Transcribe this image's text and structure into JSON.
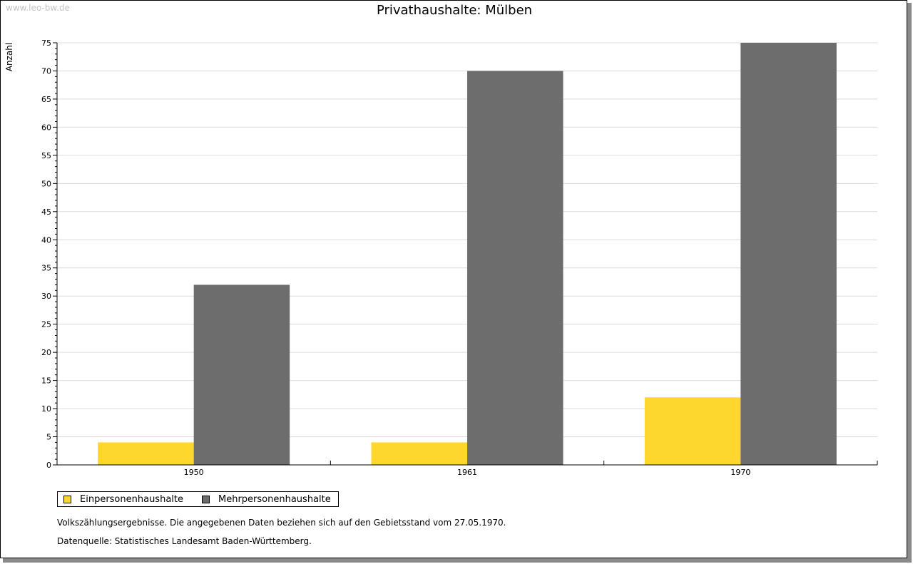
{
  "watermark": "www.leo-bw.de",
  "notes": {
    "census": "Volkszählungsergebnisse. Die angegebenen Daten beziehen sich auf den Gebietsstand vom 27.05.1970.",
    "source": "Datenquelle: Statistisches Landesamt Baden-Württemberg."
  },
  "chart_data": {
    "type": "bar",
    "title": "Privathaushalte: Mülben",
    "ylabel": "Anzahl",
    "xlabel": "",
    "categories": [
      "1950",
      "1961",
      "1970"
    ],
    "series": [
      {
        "name": "Einpersonenhaushalte",
        "color": "#fdd72e",
        "values": [
          4,
          4,
          12
        ]
      },
      {
        "name": "Mehrpersonenhaushalte",
        "color": "#6d6d6d",
        "values": [
          32,
          70,
          75
        ]
      }
    ],
    "ylim": [
      0,
      75
    ],
    "ytick_step": 5,
    "grid": true,
    "legend_position": "bottom-left"
  }
}
